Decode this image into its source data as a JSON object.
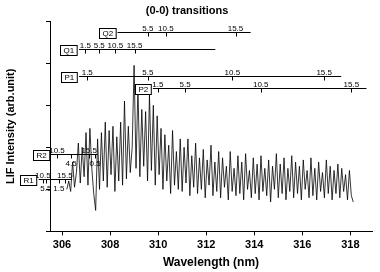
{
  "chart_data": {
    "type": "line",
    "title": "(0-0) transitions",
    "x_label": "Wavelength (nm)",
    "y_label": "LIF Intensity (arb.unit)",
    "color": "#000000",
    "grid": false,
    "tick_labels": "x",
    "xlim": [
      305.5,
      318.9
    ],
    "xticks": [
      306,
      308,
      310,
      312,
      314,
      316,
      318
    ],
    "ylim": [
      0,
      100
    ],
    "yticks": [
      0,
      20,
      40,
      60,
      80,
      100
    ],
    "x": [
      306.2,
      306.28,
      306.36,
      306.44,
      306.52,
      306.6,
      306.68,
      306.76,
      306.84,
      306.92,
      307,
      307.08,
      307.16,
      307.24,
      307.32,
      307.4,
      307.48,
      307.56,
      307.64,
      307.72,
      307.8,
      307.88,
      307.96,
      308.04,
      308.12,
      308.2,
      308.28,
      308.36,
      308.44,
      308.52,
      308.6,
      308.68,
      308.76,
      308.84,
      308.92,
      309,
      309.08,
      309.16,
      309.24,
      309.32,
      309.4,
      309.48,
      309.56,
      309.64,
      309.72,
      309.8,
      309.88,
      309.96,
      310.04,
      310.12,
      310.2,
      310.28,
      310.36,
      310.44,
      310.52,
      310.6,
      310.68,
      310.76,
      310.84,
      310.92,
      311,
      311.08,
      311.16,
      311.24,
      311.32,
      311.4,
      311.48,
      311.56,
      311.64,
      311.72,
      311.8,
      311.88,
      311.96,
      312.04,
      312.12,
      312.2,
      312.28,
      312.36,
      312.44,
      312.52,
      312.6,
      312.68,
      312.76,
      312.84,
      312.92,
      313,
      313.08,
      313.16,
      313.24,
      313.32,
      313.4,
      313.48,
      313.56,
      313.64,
      313.72,
      313.8,
      313.88,
      313.96,
      314.04,
      314.12,
      314.2,
      314.28,
      314.36,
      314.44,
      314.52,
      314.6,
      314.68,
      314.76,
      314.84,
      314.92,
      315,
      315.08,
      315.16,
      315.24,
      315.32,
      315.4,
      315.48,
      315.56,
      315.64,
      315.72,
      315.8,
      315.88,
      315.96,
      316.04,
      316.12,
      316.2,
      316.28,
      316.36,
      316.44,
      316.52,
      316.6,
      316.68,
      316.76,
      316.84,
      316.92,
      317,
      317.08,
      317.16,
      317.24,
      317.32,
      317.4,
      317.48,
      317.56,
      317.64,
      317.72,
      317.8,
      317.88,
      317.96,
      318.04,
      318.12
    ],
    "values": [
      20,
      24,
      19,
      33,
      21,
      28,
      42,
      23,
      40,
      26,
      47,
      22,
      49,
      30,
      18,
      10,
      44,
      20,
      47,
      24,
      52,
      21,
      48,
      27,
      50,
      19,
      45,
      24,
      52,
      22,
      62,
      25,
      50,
      28,
      40,
      79,
      30,
      69,
      26,
      58,
      31,
      57,
      24,
      65,
      29,
      60,
      22,
      55,
      27,
      49,
      20,
      46,
      24,
      41,
      18,
      48,
      22,
      38,
      20,
      44,
      19,
      40,
      23,
      44,
      17,
      36,
      21,
      42,
      18,
      35,
      20,
      39,
      16,
      34,
      22,
      41,
      17,
      33,
      19,
      38,
      16,
      35,
      21,
      31,
      15,
      38,
      19,
      30,
      17,
      36,
      18,
      33,
      15,
      37,
      20,
      29,
      16,
      35,
      18,
      32,
      15,
      36,
      19,
      30,
      17,
      34,
      14,
      31,
      20,
      37,
      16,
      32,
      18,
      35,
      15,
      30,
      19,
      36,
      16,
      33,
      18,
      31,
      15,
      34,
      20,
      29,
      16,
      35,
      17,
      30,
      15,
      33,
      19,
      28,
      16,
      34,
      18,
      31,
      15,
      29,
      18,
      32,
      16,
      30,
      19,
      27,
      15,
      29,
      17,
      14
    ],
    "annotations": [
      {
        "label": "Q2",
        "y": 95,
        "start": 308.31,
        "end": 313.85,
        "above": [
          {
            "x": 309.57,
            "text": "5.5"
          },
          {
            "x": 310.32,
            "text": "10.5"
          },
          {
            "x": 313.22,
            "text": "15.5"
          }
        ]
      },
      {
        "label": "Q1",
        "y": 87,
        "start": 306.71,
        "end": 312.38,
        "above": [
          {
            "x": 306.97,
            "text": "1.5"
          },
          {
            "x": 307.55,
            "text": "5.5"
          },
          {
            "x": 308.22,
            "text": "10.5"
          },
          {
            "x": 309.02,
            "text": "15.5"
          }
        ]
      },
      {
        "label": "P1",
        "y": 74,
        "start": 306.71,
        "end": 317.62,
        "above": [
          {
            "x": 307.05,
            "text": "1.5"
          },
          {
            "x": 309.57,
            "text": "5.5"
          },
          {
            "x": 313.09,
            "text": "10.5"
          },
          {
            "x": 316.91,
            "text": "15.5"
          }
        ]
      },
      {
        "label": "P2",
        "y": 68,
        "start": 309.78,
        "end": 318.67,
        "above": [
          {
            "x": 309.99,
            "text": "1.5"
          },
          {
            "x": 311.12,
            "text": "5.5"
          },
          {
            "x": 314.27,
            "text": "10.5"
          },
          {
            "x": 318.04,
            "text": "15.5"
          }
        ]
      },
      {
        "label": "R2",
        "y": 37,
        "start": 305.54,
        "end": 307.47,
        "above": [
          {
            "x": 305.79,
            "text": "10.5"
          },
          {
            "x": 307.13,
            "text": "15.5"
          }
        ],
        "below": [
          {
            "x": 306.38,
            "text": "4.5"
          },
          {
            "x": 307.38,
            "text": "0.5"
          }
        ]
      },
      {
        "label": "R1",
        "y": 25,
        "start": 305.03,
        "end": 306.42,
        "above": [
          {
            "x": 305.2,
            "text": "10.5"
          },
          {
            "x": 306.12,
            "text": "15.5"
          }
        ],
        "below": [
          {
            "x": 305.33,
            "text": "5.5"
          },
          {
            "x": 305.87,
            "text": "1.5"
          }
        ]
      }
    ]
  }
}
